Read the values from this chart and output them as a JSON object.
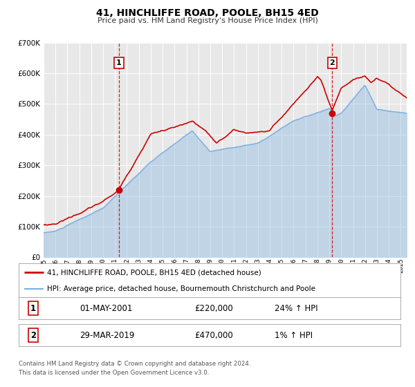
{
  "title": "41, HINCHLIFFE ROAD, POOLE, BH15 4ED",
  "subtitle": "Price paid vs. HM Land Registry's House Price Index (HPI)",
  "legend_line1": "41, HINCHLIFFE ROAD, POOLE, BH15 4ED (detached house)",
  "legend_line2": "HPI: Average price, detached house, Bournemouth Christchurch and Poole",
  "footnote1": "Contains HM Land Registry data © Crown copyright and database right 2024.",
  "footnote2": "This data is licensed under the Open Government Licence v3.0.",
  "marker1_date": "01-MAY-2001",
  "marker1_price": "£220,000",
  "marker1_hpi": "24% ↑ HPI",
  "marker1_year": 2001.33,
  "marker1_value": 220000,
  "marker2_date": "29-MAR-2019",
  "marker2_price": "£470,000",
  "marker2_hpi": "1% ↑ HPI",
  "marker2_year": 2019.24,
  "marker2_value": 470000,
  "hpi_color": "#7ab0e0",
  "price_color": "#cc0000",
  "background_plot": "#e8e8e8",
  "background_fig": "#ffffff",
  "grid_color": "#ffffff",
  "ylim": [
    0,
    700000
  ],
  "xlim_start": 1995,
  "xlim_end": 2025.5
}
